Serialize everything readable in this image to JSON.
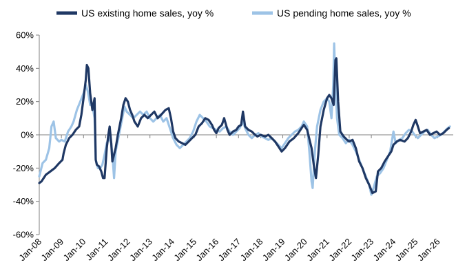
{
  "chart_data": {
    "type": "line",
    "title": "",
    "xlabel": "",
    "ylabel": "",
    "ylim": [
      -60,
      60
    ],
    "y_ticks": [
      60,
      40,
      20,
      0,
      -20,
      -40,
      -60
    ],
    "y_tick_labels": [
      "60%",
      "40%",
      "20%",
      "0%",
      "-20%",
      "-40%",
      "-60%"
    ],
    "xlim": [
      2008.0,
      2026.7
    ],
    "x_ticks": [
      2008,
      2009,
      2010,
      2011,
      2012,
      2013,
      2014,
      2015,
      2016,
      2017,
      2018,
      2019,
      2020,
      2021,
      2022,
      2023,
      2024,
      2025,
      2026
    ],
    "x_tick_labels": [
      "Jan-08",
      "Jan-09",
      "Jan-10",
      "Jan-11",
      "Jan-12",
      "Jan-13",
      "Jan-14",
      "Jan-15",
      "Jan-16",
      "Jan-17",
      "Jan-18",
      "Jan-19",
      "Jan-20",
      "Jan-21",
      "Jan-22",
      "Jan-23",
      "Jan-24",
      "Jan-25",
      "Jan-26"
    ],
    "grid": false,
    "legend_position": "top",
    "series": [
      {
        "name": "US existing home sales, yoy %",
        "color": "#1f3864",
        "points": [
          [
            2008.0,
            -29
          ],
          [
            2008.1,
            -28
          ],
          [
            2008.3,
            -24
          ],
          [
            2008.5,
            -22
          ],
          [
            2008.7,
            -20
          ],
          [
            2008.9,
            -17
          ],
          [
            2009.05,
            -15
          ],
          [
            2009.1,
            -11
          ],
          [
            2009.2,
            -6
          ],
          [
            2009.35,
            -2
          ],
          [
            2009.5,
            0
          ],
          [
            2009.65,
            3
          ],
          [
            2009.8,
            5
          ],
          [
            2009.9,
            12
          ],
          [
            2010.0,
            22
          ],
          [
            2010.1,
            33
          ],
          [
            2010.15,
            42
          ],
          [
            2010.22,
            40
          ],
          [
            2010.3,
            25
          ],
          [
            2010.4,
            15
          ],
          [
            2010.5,
            22
          ],
          [
            2010.55,
            -15
          ],
          [
            2010.6,
            -18
          ],
          [
            2010.7,
            -19
          ],
          [
            2010.8,
            -22
          ],
          [
            2010.88,
            -26
          ],
          [
            2010.95,
            -26
          ],
          [
            2011.05,
            -8
          ],
          [
            2011.12,
            0
          ],
          [
            2011.18,
            5
          ],
          [
            2011.25,
            -5
          ],
          [
            2011.3,
            -16
          ],
          [
            2011.45,
            -8
          ],
          [
            2011.55,
            0
          ],
          [
            2011.7,
            10
          ],
          [
            2011.8,
            18
          ],
          [
            2011.9,
            22
          ],
          [
            2012.0,
            20
          ],
          [
            2012.1,
            15
          ],
          [
            2012.2,
            12
          ],
          [
            2012.3,
            8
          ],
          [
            2012.45,
            5
          ],
          [
            2012.6,
            10
          ],
          [
            2012.75,
            12
          ],
          [
            2012.9,
            10
          ],
          [
            2013.05,
            12
          ],
          [
            2013.2,
            14
          ],
          [
            2013.35,
            10
          ],
          [
            2013.5,
            12
          ],
          [
            2013.7,
            15
          ],
          [
            2013.85,
            16
          ],
          [
            2013.95,
            10
          ],
          [
            2014.05,
            2
          ],
          [
            2014.15,
            -2
          ],
          [
            2014.3,
            -4
          ],
          [
            2014.45,
            -5
          ],
          [
            2014.6,
            -6
          ],
          [
            2014.75,
            -4
          ],
          [
            2014.9,
            -2
          ],
          [
            2015.05,
            0
          ],
          [
            2015.2,
            5
          ],
          [
            2015.35,
            7
          ],
          [
            2015.5,
            10
          ],
          [
            2015.65,
            9
          ],
          [
            2015.8,
            6
          ],
          [
            2015.9,
            3
          ],
          [
            2016.0,
            1
          ],
          [
            2016.1,
            4
          ],
          [
            2016.25,
            6
          ],
          [
            2016.35,
            10
          ],
          [
            2016.5,
            3
          ],
          [
            2016.6,
            0
          ],
          [
            2016.75,
            2
          ],
          [
            2016.9,
            3
          ],
          [
            2017.0,
            5
          ],
          [
            2017.12,
            6
          ],
          [
            2017.2,
            14
          ],
          [
            2017.3,
            5
          ],
          [
            2017.45,
            3
          ],
          [
            2017.6,
            2
          ],
          [
            2017.75,
            0
          ],
          [
            2017.85,
            -1
          ],
          [
            2018.0,
            0
          ],
          [
            2018.2,
            -1
          ],
          [
            2018.35,
            0
          ],
          [
            2018.5,
            -2
          ],
          [
            2018.65,
            -4
          ],
          [
            2018.8,
            -7
          ],
          [
            2018.95,
            -10
          ],
          [
            2019.1,
            -8
          ],
          [
            2019.3,
            -4
          ],
          [
            2019.5,
            -2
          ],
          [
            2019.7,
            1
          ],
          [
            2019.85,
            4
          ],
          [
            2019.95,
            6
          ],
          [
            2020.1,
            3
          ],
          [
            2020.3,
            -8
          ],
          [
            2020.4,
            -18
          ],
          [
            2020.5,
            -26
          ],
          [
            2020.6,
            -12
          ],
          [
            2020.7,
            5
          ],
          [
            2020.85,
            15
          ],
          [
            2021.0,
            22
          ],
          [
            2021.1,
            24
          ],
          [
            2021.2,
            22
          ],
          [
            2021.3,
            18
          ],
          [
            2021.38,
            45
          ],
          [
            2021.42,
            46
          ],
          [
            2021.5,
            20
          ],
          [
            2021.6,
            2
          ],
          [
            2021.75,
            -1
          ],
          [
            2021.9,
            -3
          ],
          [
            2022.0,
            -4
          ],
          [
            2022.15,
            -3
          ],
          [
            2022.3,
            -8
          ],
          [
            2022.45,
            -16
          ],
          [
            2022.6,
            -20
          ],
          [
            2022.75,
            -26
          ],
          [
            2022.9,
            -30
          ],
          [
            2023.05,
            -35
          ],
          [
            2023.2,
            -34
          ],
          [
            2023.3,
            -22
          ],
          [
            2023.45,
            -20
          ],
          [
            2023.6,
            -16
          ],
          [
            2023.75,
            -13
          ],
          [
            2023.9,
            -10
          ],
          [
            2024.0,
            -6
          ],
          [
            2024.15,
            -4
          ],
          [
            2024.3,
            -3
          ],
          [
            2024.5,
            -4
          ],
          [
            2024.65,
            -2
          ],
          [
            2024.8,
            2
          ],
          [
            2024.9,
            6
          ],
          [
            2025.0,
            9
          ],
          [
            2025.08,
            6
          ],
          [
            2025.2,
            1
          ],
          [
            2025.35,
            2
          ],
          [
            2025.5,
            3
          ],
          [
            2025.65,
            0
          ],
          [
            2025.8,
            1
          ],
          [
            2025.95,
            2
          ],
          [
            2026.1,
            0
          ],
          [
            2026.25,
            1
          ],
          [
            2026.4,
            3
          ],
          [
            2026.5,
            4
          ]
        ]
      },
      {
        "name": "US pending home sales, yoy %",
        "color": "#9dc3e6",
        "points": [
          [
            2008.0,
            -25
          ],
          [
            2008.15,
            -17
          ],
          [
            2008.3,
            -15
          ],
          [
            2008.45,
            -8
          ],
          [
            2008.55,
            5
          ],
          [
            2008.65,
            8
          ],
          [
            2008.75,
            -2
          ],
          [
            2008.9,
            -4
          ],
          [
            2009.0,
            -3
          ],
          [
            2009.15,
            -4
          ],
          [
            2009.3,
            2
          ],
          [
            2009.45,
            5
          ],
          [
            2009.55,
            8
          ],
          [
            2009.7,
            15
          ],
          [
            2009.85,
            20
          ],
          [
            2010.0,
            25
          ],
          [
            2010.1,
            30
          ],
          [
            2010.2,
            26
          ],
          [
            2010.3,
            18
          ],
          [
            2010.4,
            18
          ],
          [
            2010.5,
            10
          ],
          [
            2010.55,
            -15
          ],
          [
            2010.65,
            -20
          ],
          [
            2010.75,
            -20
          ],
          [
            2010.85,
            -18
          ],
          [
            2010.95,
            -12
          ],
          [
            2011.05,
            -5
          ],
          [
            2011.15,
            -2
          ],
          [
            2011.25,
            -5
          ],
          [
            2011.32,
            -15
          ],
          [
            2011.38,
            -26
          ],
          [
            2011.45,
            -10
          ],
          [
            2011.6,
            0
          ],
          [
            2011.75,
            10
          ],
          [
            2011.85,
            17
          ],
          [
            2011.95,
            14
          ],
          [
            2012.1,
            12
          ],
          [
            2012.25,
            10
          ],
          [
            2012.4,
            12
          ],
          [
            2012.55,
            14
          ],
          [
            2012.7,
            12
          ],
          [
            2012.85,
            14
          ],
          [
            2013.0,
            10
          ],
          [
            2013.15,
            8
          ],
          [
            2013.3,
            10
          ],
          [
            2013.45,
            12
          ],
          [
            2013.6,
            8
          ],
          [
            2013.75,
            10
          ],
          [
            2013.9,
            4
          ],
          [
            2014.05,
            -2
          ],
          [
            2014.2,
            -6
          ],
          [
            2014.35,
            -8
          ],
          [
            2014.5,
            -6
          ],
          [
            2014.65,
            -4
          ],
          [
            2014.8,
            -2
          ],
          [
            2014.95,
            2
          ],
          [
            2015.1,
            8
          ],
          [
            2015.25,
            12
          ],
          [
            2015.4,
            10
          ],
          [
            2015.55,
            8
          ],
          [
            2015.7,
            5
          ],
          [
            2015.85,
            4
          ],
          [
            2016.0,
            3
          ],
          [
            2016.15,
            2
          ],
          [
            2016.3,
            4
          ],
          [
            2016.45,
            5
          ],
          [
            2016.6,
            2
          ],
          [
            2016.75,
            0
          ],
          [
            2016.9,
            2
          ],
          [
            2017.05,
            4
          ],
          [
            2017.2,
            8
          ],
          [
            2017.3,
            4
          ],
          [
            2017.45,
            0
          ],
          [
            2017.6,
            -2
          ],
          [
            2017.75,
            0
          ],
          [
            2017.9,
            1
          ],
          [
            2018.05,
            -1
          ],
          [
            2018.2,
            -2
          ],
          [
            2018.35,
            -3
          ],
          [
            2018.5,
            -2
          ],
          [
            2018.65,
            -4
          ],
          [
            2018.8,
            -6
          ],
          [
            2018.95,
            -8
          ],
          [
            2019.1,
            -5
          ],
          [
            2019.25,
            -2
          ],
          [
            2019.4,
            0
          ],
          [
            2019.55,
            2
          ],
          [
            2019.7,
            3
          ],
          [
            2019.85,
            5
          ],
          [
            2019.95,
            8
          ],
          [
            2020.1,
            5
          ],
          [
            2020.2,
            -10
          ],
          [
            2020.3,
            -28
          ],
          [
            2020.35,
            -32
          ],
          [
            2020.45,
            -10
          ],
          [
            2020.55,
            5
          ],
          [
            2020.7,
            15
          ],
          [
            2020.85,
            20
          ],
          [
            2021.0,
            22
          ],
          [
            2021.1,
            20
          ],
          [
            2021.2,
            10
          ],
          [
            2021.28,
            30
          ],
          [
            2021.32,
            55
          ],
          [
            2021.38,
            30
          ],
          [
            2021.45,
            10
          ],
          [
            2021.55,
            0
          ],
          [
            2021.7,
            -2
          ],
          [
            2021.85,
            -5
          ],
          [
            2022.0,
            -3
          ],
          [
            2022.15,
            -6
          ],
          [
            2022.3,
            -10
          ],
          [
            2022.45,
            -15
          ],
          [
            2022.6,
            -20
          ],
          [
            2022.75,
            -25
          ],
          [
            2022.9,
            -30
          ],
          [
            2023.0,
            -36
          ],
          [
            2023.1,
            -32
          ],
          [
            2023.25,
            -25
          ],
          [
            2023.4,
            -23
          ],
          [
            2023.55,
            -20
          ],
          [
            2023.7,
            -15
          ],
          [
            2023.85,
            -10
          ],
          [
            2024.0,
            2
          ],
          [
            2024.1,
            -5
          ],
          [
            2024.25,
            -3
          ],
          [
            2024.4,
            -2
          ],
          [
            2024.55,
            1
          ],
          [
            2024.7,
            3
          ],
          [
            2024.85,
            2
          ],
          [
            2024.95,
            0
          ],
          [
            2025.1,
            -2
          ],
          [
            2025.25,
            0
          ],
          [
            2025.4,
            2
          ],
          [
            2025.55,
            3
          ],
          [
            2025.7,
            0
          ],
          [
            2025.85,
            -2
          ],
          [
            2026.0,
            -1
          ],
          [
            2026.15,
            0
          ],
          [
            2026.3,
            2
          ],
          [
            2026.45,
            4
          ],
          [
            2026.55,
            5
          ]
        ]
      }
    ]
  }
}
